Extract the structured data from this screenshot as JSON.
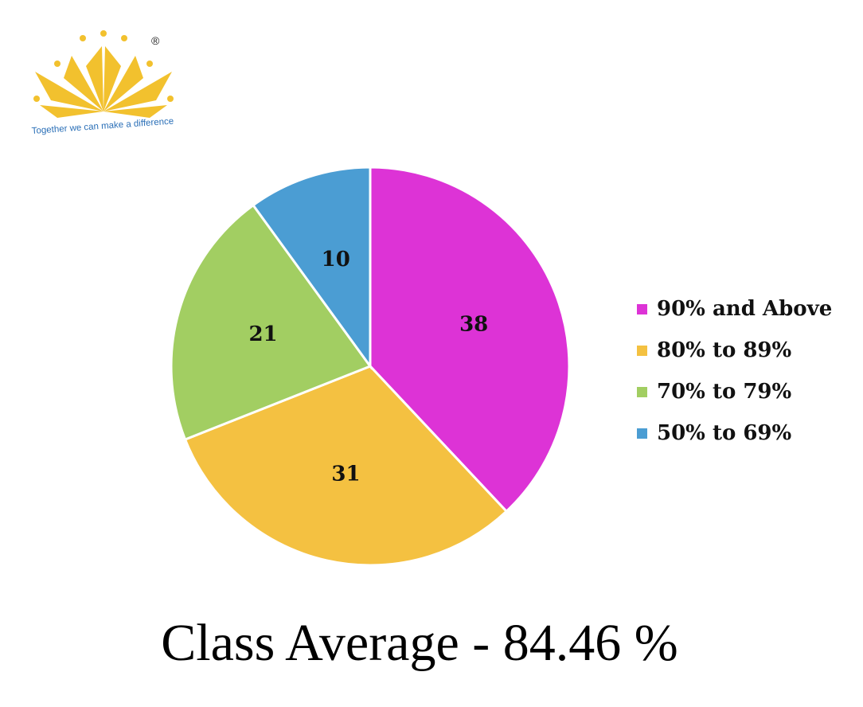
{
  "logo": {
    "tagline": "Together we can make a difference",
    "mark": "®",
    "color": "#F2C12E",
    "text_color": "#2A6FB7"
  },
  "chart_data": {
    "type": "pie",
    "categories": [
      "90% and Above",
      "80% to 89%",
      "70% to 79%",
      "50% to 69%"
    ],
    "values": [
      38,
      31,
      21,
      10
    ],
    "colors": [
      "#DD33D6",
      "#F4C141",
      "#A2CE62",
      "#4B9DD3"
    ],
    "start_angle": "12 o'clock",
    "direction": "clockwise",
    "legend_position": "right",
    "title": "",
    "data_labels": [
      "38",
      "31",
      "21",
      "10"
    ]
  },
  "footer": {
    "class_average": "Class Average - 84.46 %"
  }
}
